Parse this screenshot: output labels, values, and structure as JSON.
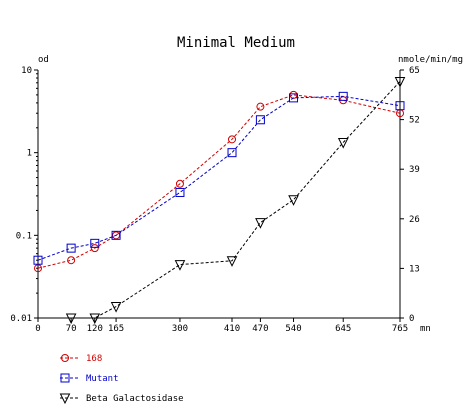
{
  "chart_data": {
    "type": "line",
    "title": "Minimal Medium",
    "x": [
      0,
      70,
      120,
      165,
      300,
      410,
      470,
      540,
      645,
      765
    ],
    "xlim": [
      0,
      765
    ],
    "x_unit": "mn",
    "y_left": {
      "label": "od",
      "scale": "log",
      "lim": [
        0.01,
        10
      ],
      "ticks": [
        "10",
        "1",
        "0.1",
        "0.01"
      ]
    },
    "y_right": {
      "label": "nmole/min/mg",
      "lim": [
        0,
        65
      ],
      "ticks": [
        "65",
        "52",
        "39",
        "26",
        "13",
        "0"
      ]
    },
    "series": [
      {
        "name": "168",
        "axis": "left",
        "color": "#d00000",
        "marker": "circle",
        "points": [
          [
            0,
            0.04
          ],
          [
            70,
            0.05
          ],
          [
            120,
            0.07
          ],
          [
            165,
            0.1
          ],
          [
            300,
            0.42
          ],
          [
            410,
            1.45
          ],
          [
            470,
            3.6
          ],
          [
            540,
            5.0
          ],
          [
            645,
            4.3
          ],
          [
            765,
            3.0
          ]
        ]
      },
      {
        "name": "Mutant",
        "axis": "left",
        "color": "#0000cc",
        "marker": "square",
        "points": [
          [
            0,
            0.05
          ],
          [
            70,
            0.07
          ],
          [
            120,
            0.08
          ],
          [
            165,
            0.1
          ],
          [
            300,
            0.33
          ],
          [
            410,
            1.0
          ],
          [
            470,
            2.5
          ],
          [
            540,
            4.6
          ],
          [
            645,
            4.8
          ],
          [
            765,
            3.7
          ]
        ]
      },
      {
        "name": "Beta Galactosidase",
        "axis": "right",
        "color": "#000000",
        "marker": "triangle-down",
        "points": [
          [
            70,
            0
          ],
          [
            120,
            0
          ],
          [
            165,
            3
          ],
          [
            300,
            14
          ],
          [
            410,
            15
          ],
          [
            470,
            25
          ],
          [
            540,
            31
          ],
          [
            645,
            46
          ],
          [
            765,
            62
          ]
        ]
      }
    ]
  }
}
